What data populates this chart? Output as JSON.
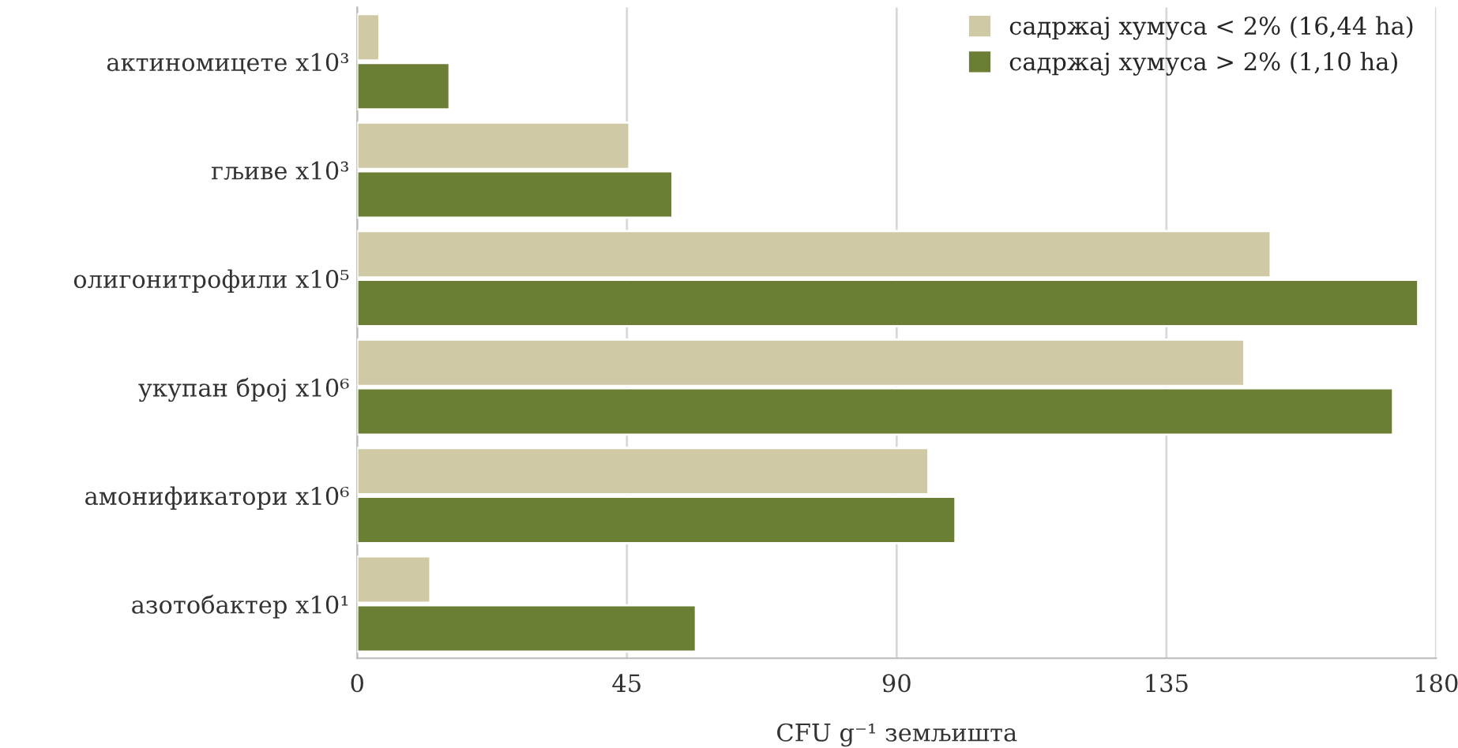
{
  "chart_data": {
    "type": "bar",
    "orientation": "horizontal",
    "categories": [
      "актиномицете x10³",
      "гљиве x10³",
      "олигонитрофили x10⁵",
      "укупан број x10⁶",
      "амонификатори x10⁶",
      "азотобактер x10¹"
    ],
    "series": [
      {
        "name": "садржај хумуса < 2% (16,44 ha)",
        "color": "#cfc9a5",
        "values": [
          3.7,
          45.4,
          152.4,
          148,
          95.3,
          12.2
        ]
      },
      {
        "name": "садржај хумуса > 2% (1,10 ha)",
        "color": "#6b7f34",
        "values": [
          15.4,
          52.6,
          177,
          172.8,
          99.8,
          56.5
        ]
      }
    ],
    "xlabel": "CFU g⁻¹ земљишта",
    "xlim": [
      0,
      180
    ],
    "xticks": [
      0,
      45,
      90,
      135,
      180
    ],
    "grid": "x",
    "legend": "top right"
  }
}
